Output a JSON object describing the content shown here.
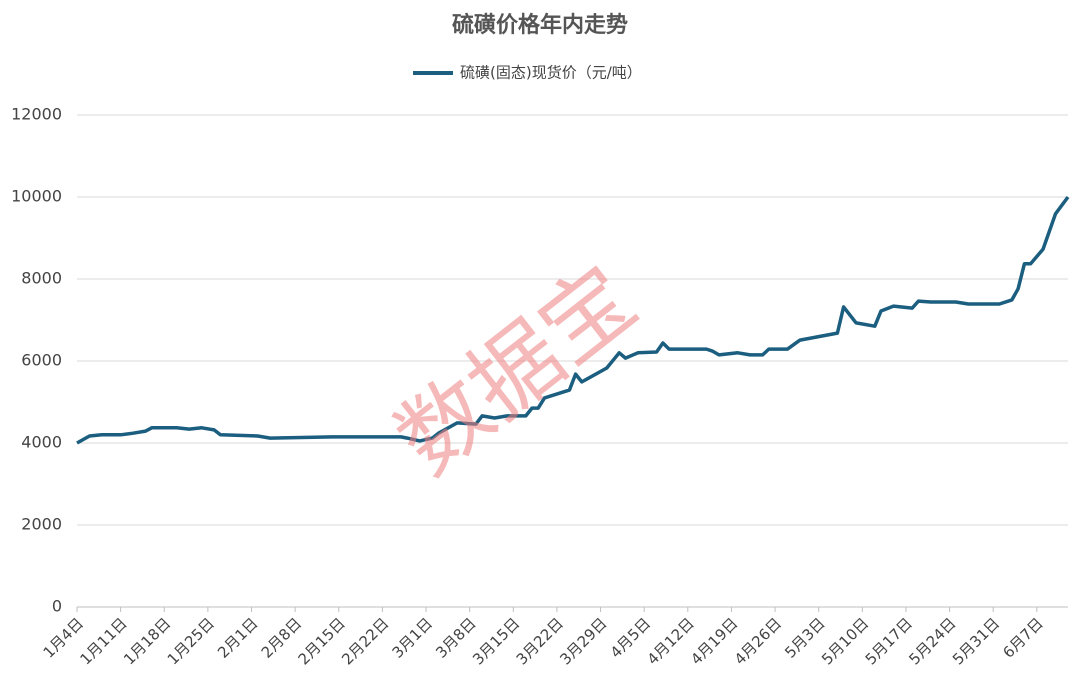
{
  "chart_data": {
    "type": "line",
    "title": "硫磺价格年内走势",
    "watermark": "数据宝",
    "x": [
      "1月4日",
      "1月6日",
      "1月8日",
      "1月11日",
      "1月13日",
      "1月15日",
      "1月16日",
      "1月20日",
      "1月22日",
      "1月24日",
      "1月26日",
      "1月27日",
      "2月2日",
      "2月4日",
      "2月14日",
      "2月25日",
      "2月26日",
      "2月28日",
      "3月2日",
      "3月3日",
      "3月6日",
      "3月9日",
      "3月10日",
      "3月12日",
      "3月14日",
      "3月17日",
      "3月18日",
      "3月19日",
      "3月20日",
      "3月24日",
      "3月25日",
      "3月26日",
      "3月30日",
      "4月1日",
      "4月2日",
      "4月4日",
      "4月7日",
      "4月8日",
      "4月9日",
      "4月15日",
      "4月16日",
      "4月17日",
      "4月20日",
      "4月22日",
      "4月24日",
      "4月25日",
      "4月28日",
      "4月30日",
      "5月6日",
      "5月7日",
      "5月9日",
      "5月12日",
      "5月13日",
      "5月15日",
      "5月18日",
      "5月19日",
      "5月21日",
      "5月25日",
      "5月27日",
      "6月1日",
      "6月3日",
      "6月4日",
      "6月5日",
      "6月6日",
      "6月8日",
      "6月10日",
      "6月12日"
    ],
    "series": [
      {
        "name": "硫磺(固态)现货价（元/吨）",
        "color": "#1b5e7f",
        "values": [
          4000,
          4170,
          4200,
          4200,
          4240,
          4290,
          4370,
          4370,
          4340,
          4370,
          4320,
          4200,
          4170,
          4120,
          4150,
          4150,
          4120,
          4050,
          4120,
          4240,
          4490,
          4460,
          4660,
          4610,
          4660,
          4660,
          4850,
          4850,
          5100,
          5290,
          5680,
          5490,
          5830,
          6200,
          6070,
          6200,
          6220,
          6440,
          6290,
          6290,
          6240,
          6150,
          6200,
          6150,
          6150,
          6290,
          6290,
          6510,
          6680,
          7320,
          6930,
          6850,
          7220,
          7340,
          7290,
          7460,
          7440,
          7440,
          7390,
          7390,
          7490,
          7760,
          8370,
          8370,
          8730,
          9590,
          10000
        ]
      }
    ],
    "xlim": [
      "1月4日",
      "6月12日"
    ],
    "xticks": [
      "1月4日",
      "1月11日",
      "1月18日",
      "1月25日",
      "2月1日",
      "2月8日",
      "2月15日",
      "2月22日",
      "3月1日",
      "3月8日",
      "3月15日",
      "3月22日",
      "3月29日",
      "4月5日",
      "4月12日",
      "4月19日",
      "4月26日",
      "5月3日",
      "5月10日",
      "5月17日",
      "5月24日",
      "5月31日",
      "6月7日"
    ],
    "ylim": [
      0,
      12000
    ],
    "yticks": [
      0,
      2000,
      4000,
      6000,
      8000,
      10000,
      12000
    ],
    "grid": true,
    "legend": "top"
  }
}
